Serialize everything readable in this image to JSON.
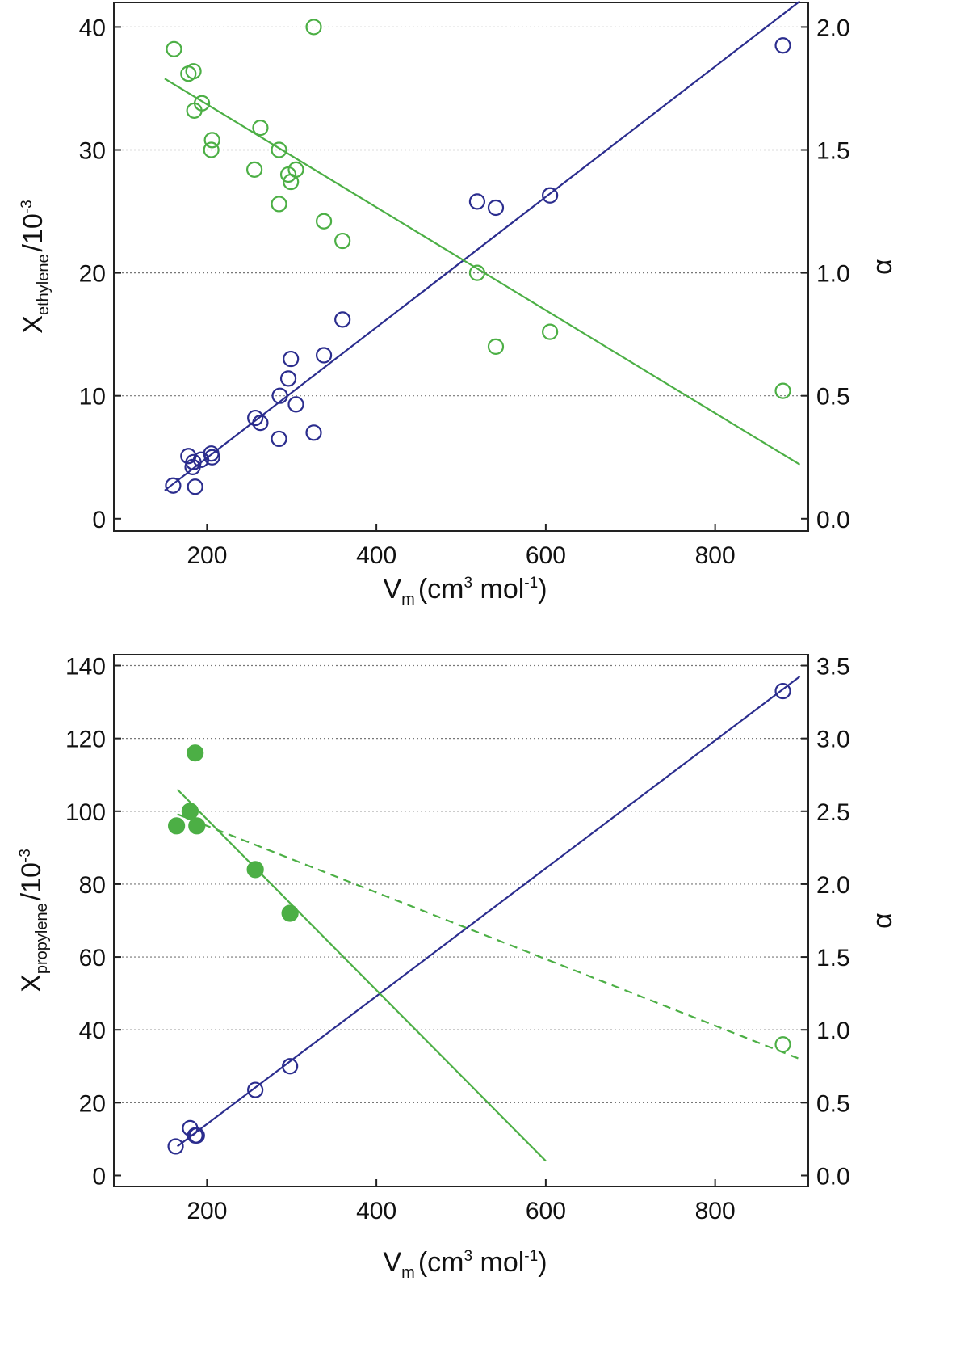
{
  "colors": {
    "x_series": "#2b2d8e",
    "alpha_series": "#4caf45",
    "axis": "#222222"
  },
  "chart_data": [
    {
      "type": "scatter",
      "xlabel": {
        "main": "V",
        "sub": "m",
        "unit_open": "(cm",
        "unit_sup": "3",
        "unit_mid": " mol",
        "unit_sup2": "-1",
        "unit_close": ")"
      },
      "ylabel_left": {
        "main": "X",
        "sub": "ethylene",
        "unit": "/10",
        "unit_sup": "-3"
      },
      "ylabel_right": "α",
      "xlim": [
        90,
        910
      ],
      "ylim_left": [
        -1,
        42
      ],
      "ylim_right": [
        -0.05,
        2.1
      ],
      "xticks": [
        200,
        400,
        600,
        800
      ],
      "yticks_left": [
        0,
        10,
        20,
        30,
        40
      ],
      "yticks_right": [
        0.0,
        0.5,
        1.0,
        1.5,
        2.0
      ],
      "ytick_labels_right": [
        "0.0",
        "0.5",
        "1.0",
        "1.5",
        "2.0"
      ],
      "gridlines_left": [
        10,
        20,
        30,
        40
      ],
      "series": [
        {
          "name": "X ethylene",
          "axis": "left",
          "color": "#2b2d8e",
          "marker": "open-circle",
          "points": [
            [
              160,
              2.7
            ],
            [
              178,
              5.1
            ],
            [
              183,
              4.2
            ],
            [
              184,
              4.6
            ],
            [
              186,
              2.6
            ],
            [
              193,
              4.8
            ],
            [
              205,
              5.3
            ],
            [
              206,
              5.0
            ],
            [
              257,
              8.2
            ],
            [
              263,
              7.8
            ],
            [
              285,
              6.5
            ],
            [
              286,
              10.0
            ],
            [
              296,
              11.4
            ],
            [
              299,
              13.0
            ],
            [
              305,
              9.3
            ],
            [
              326,
              7.0
            ],
            [
              338,
              13.3
            ],
            [
              360,
              16.2
            ],
            [
              519,
              25.8
            ],
            [
              541,
              25.3
            ],
            [
              605,
              26.3
            ],
            [
              880,
              38.5
            ]
          ],
          "fit": {
            "x": [
              150,
              900
            ],
            "y": [
              2.3,
              42.1
            ],
            "style": "solid"
          }
        },
        {
          "name": "alpha",
          "axis": "right",
          "color": "#4caf45",
          "marker": "open-circle",
          "points": [
            [
              161,
              1.91
            ],
            [
              178,
              1.81
            ],
            [
              184,
              1.82
            ],
            [
              185,
              1.66
            ],
            [
              194,
              1.69
            ],
            [
              205,
              1.5
            ],
            [
              206,
              1.54
            ],
            [
              256,
              1.42
            ],
            [
              263,
              1.59
            ],
            [
              285,
              1.5
            ],
            [
              285,
              1.28
            ],
            [
              296,
              1.4
            ],
            [
              299,
              1.37
            ],
            [
              305,
              1.42
            ],
            [
              326,
              2.0
            ],
            [
              338,
              1.21
            ],
            [
              360,
              1.13
            ],
            [
              519,
              1.0
            ],
            [
              541,
              0.7
            ],
            [
              605,
              0.76
            ],
            [
              880,
              0.52
            ]
          ],
          "fit": {
            "x": [
              150,
              900
            ],
            "y": [
              1.79,
              0.22
            ],
            "style": "solid"
          }
        }
      ]
    },
    {
      "type": "scatter",
      "xlabel": {
        "main": "V",
        "sub": "m",
        "unit_open": "(cm",
        "unit_sup": "3",
        "unit_mid": " mol",
        "unit_sup2": "-1",
        "unit_close": ")"
      },
      "ylabel_left": {
        "main": "X",
        "sub": "propylene",
        "unit": "/10",
        "unit_sup": "-3"
      },
      "ylabel_right": "α",
      "xlim": [
        90,
        910
      ],
      "ylim_left": [
        -3,
        143
      ],
      "ylim_right": [
        -0.075,
        3.575
      ],
      "xticks": [
        200,
        400,
        600,
        800
      ],
      "yticks_left": [
        0,
        20,
        40,
        60,
        80,
        100,
        120,
        140
      ],
      "yticks_right": [
        0.0,
        0.5,
        1.0,
        1.5,
        2.0,
        2.5,
        3.0,
        3.5
      ],
      "ytick_labels_right": [
        "0.0",
        "0.5",
        "1.0",
        "1.5",
        "2.0",
        "2.5",
        "3.0",
        "3.5"
      ],
      "gridlines_left": [
        20,
        40,
        60,
        80,
        100,
        120,
        140
      ],
      "series": [
        {
          "name": "X propylene",
          "axis": "left",
          "color": "#2b2d8e",
          "marker": "open-circle",
          "points": [
            [
              163,
              8.0
            ],
            [
              180,
              13.0
            ],
            [
              186,
              11.0
            ],
            [
              188,
              11.0
            ],
            [
              257,
              23.5
            ],
            [
              298,
              30.0
            ],
            [
              880,
              133.0
            ]
          ],
          "fit": {
            "x": [
              165,
              900
            ],
            "y": [
              8.0,
              137.0
            ],
            "style": "solid"
          }
        },
        {
          "name": "alpha (filled)",
          "axis": "right",
          "color": "#4caf45",
          "marker": "filled-circle",
          "points": [
            [
              164,
              2.4
            ],
            [
              180,
              2.5
            ],
            [
              186,
              2.9
            ],
            [
              188,
              2.4
            ],
            [
              257,
              2.1
            ],
            [
              298,
              1.8
            ]
          ],
          "fit": {
            "x": [
              165,
              600
            ],
            "y": [
              2.65,
              0.1
            ],
            "style": "solid"
          }
        },
        {
          "name": "alpha (open)",
          "axis": "right",
          "color": "#4caf45",
          "marker": "open-circle",
          "points": [
            [
              880,
              0.9
            ]
          ],
          "fit": {
            "x": [
              165,
              900
            ],
            "y": [
              2.48,
              0.8
            ],
            "style": "dashed"
          }
        }
      ]
    }
  ]
}
